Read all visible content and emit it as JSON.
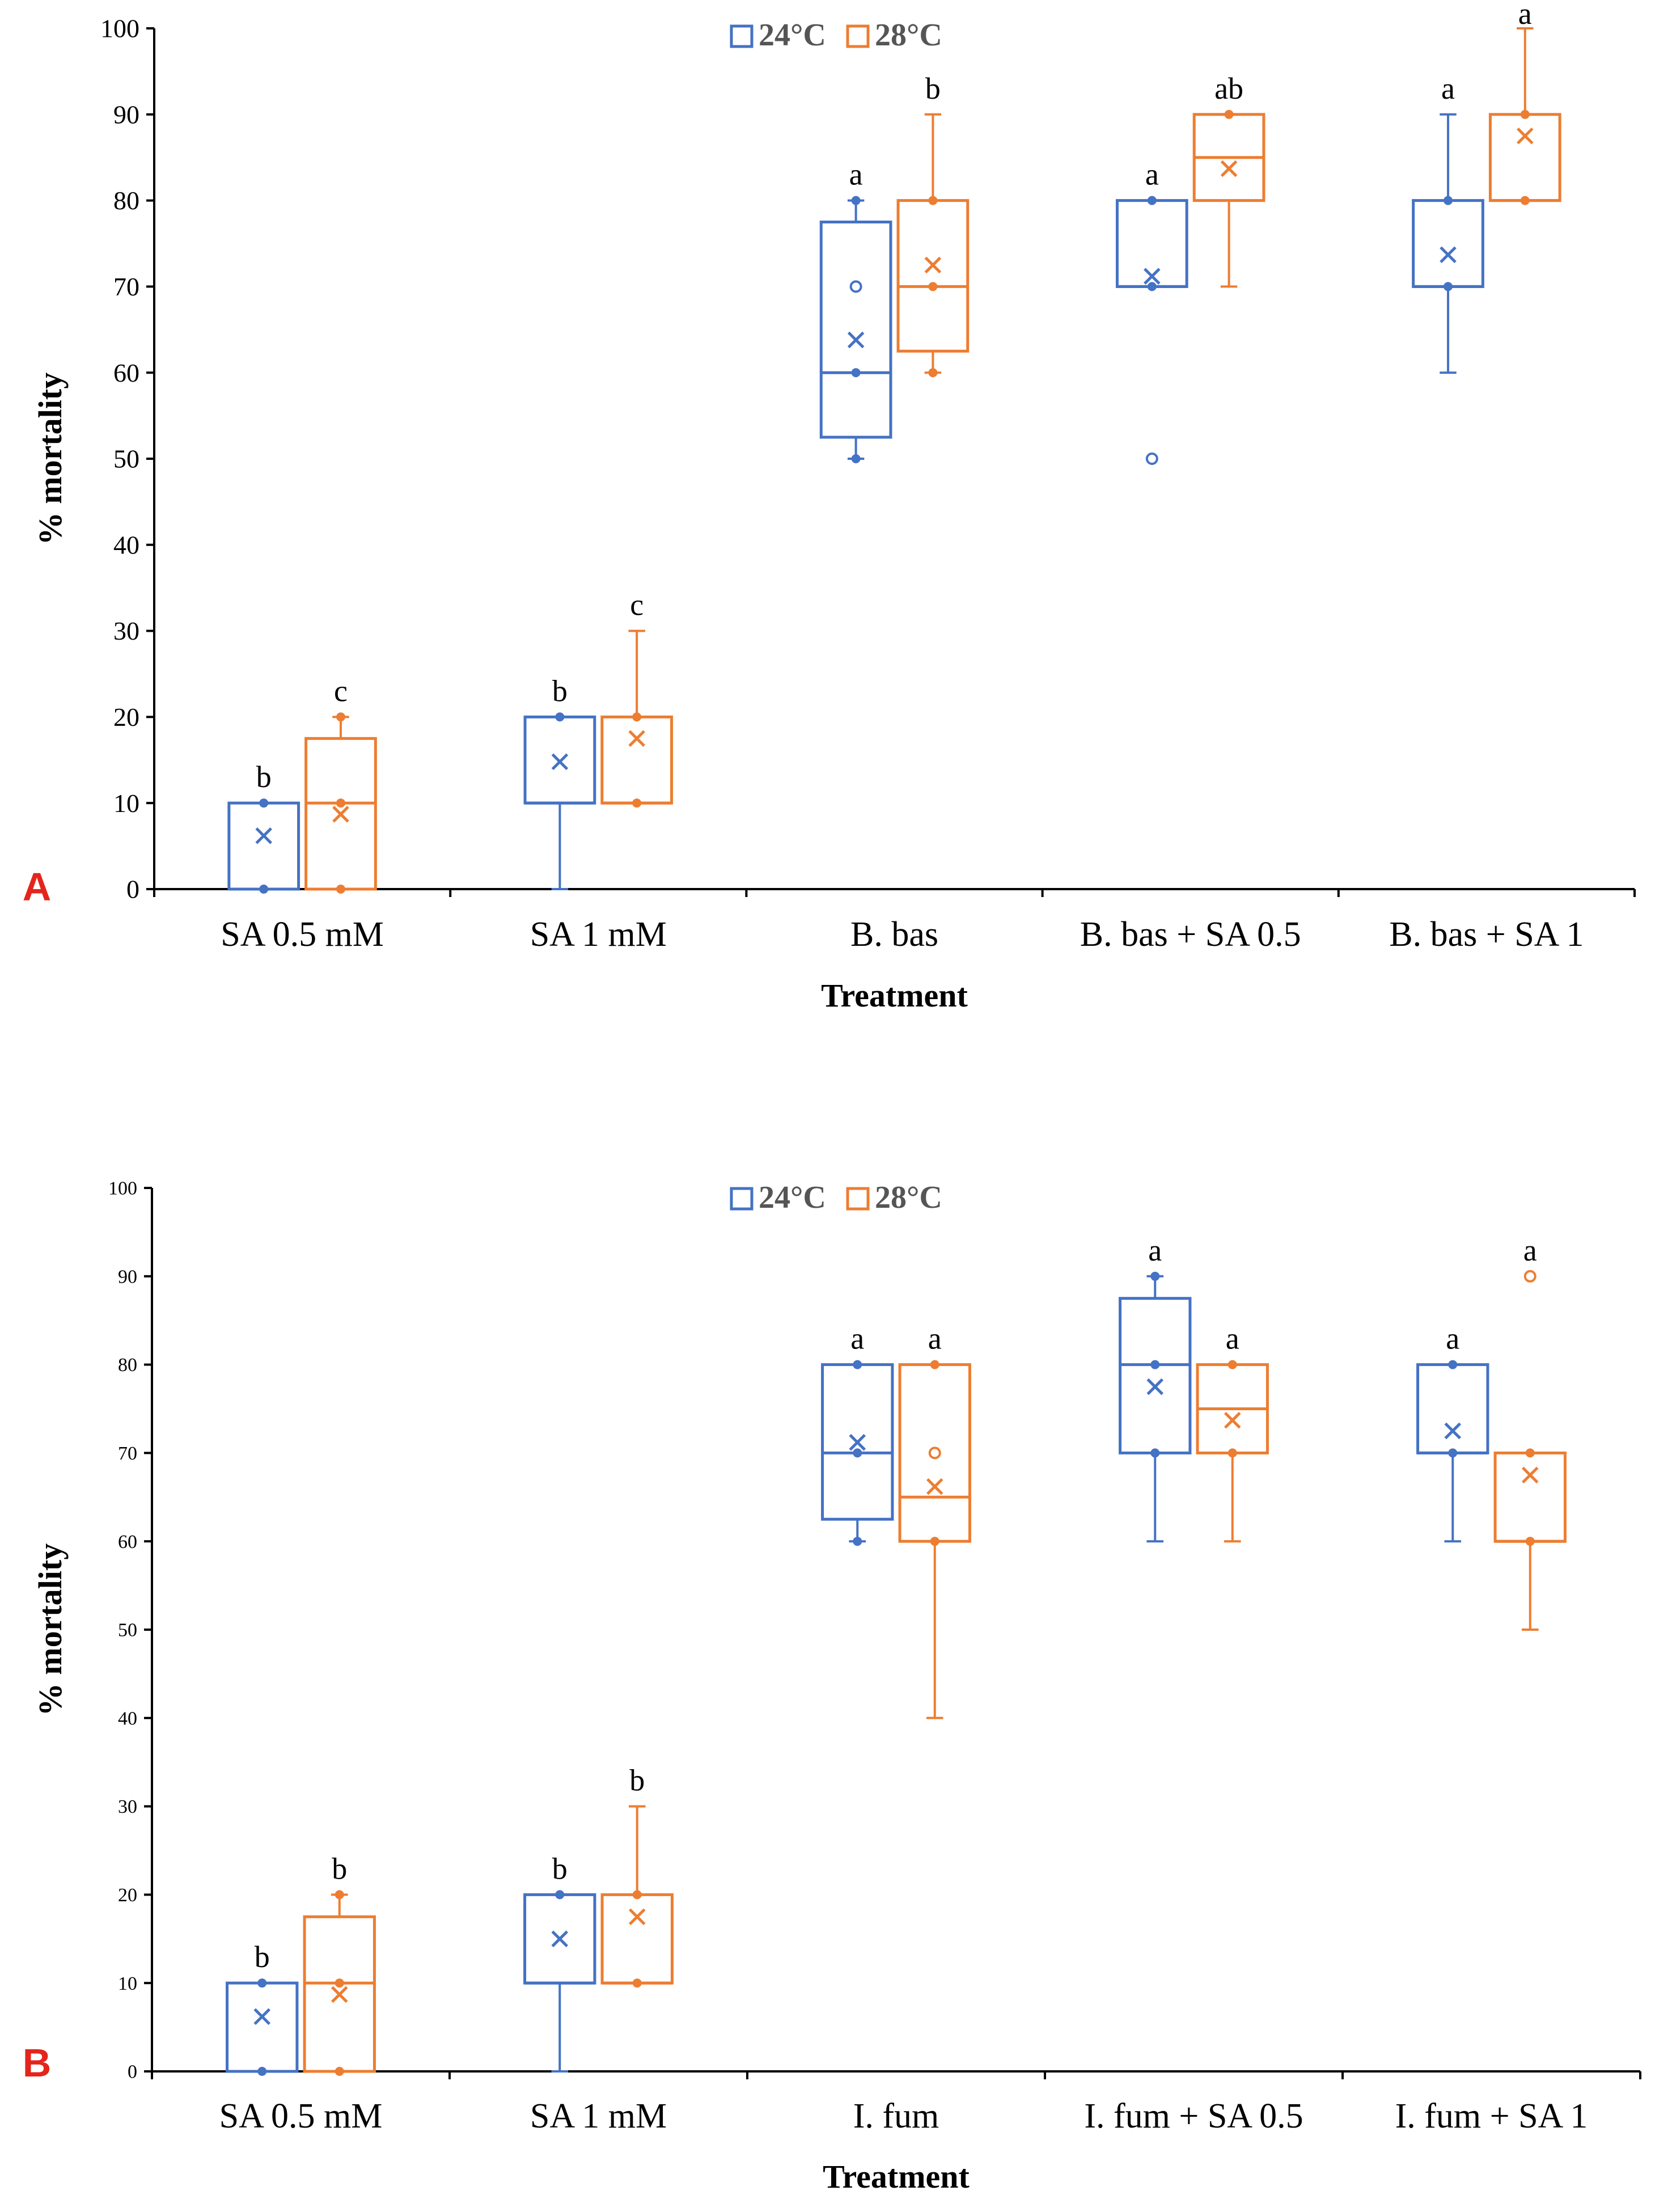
{
  "colors": {
    "c24": "#4472C4",
    "c28": "#ED7D31",
    "axis": "#000000",
    "panel_letter": "#E3251C"
  },
  "chart_data": [
    {
      "type": "box",
      "panel": "A",
      "title": "",
      "xlabel": "Treatment",
      "ylabel": "% mortality",
      "ylim": [
        0,
        100
      ],
      "yticks": [
        "0",
        "10",
        "20",
        "30",
        "40",
        "50",
        "60",
        "70",
        "80",
        "90",
        "100"
      ],
      "grid": false,
      "legend_position": "top-center",
      "legend": [
        {
          "name": "24°C",
          "color": "#4472C4"
        },
        {
          "name": "28°C",
          "color": "#ED7D31"
        }
      ],
      "categories": [
        "SA 0.5 mM",
        "SA 1 mM",
        "B. bas",
        "B. bas + SA 0.5",
        "B. bas + SA 1"
      ],
      "series": [
        {
          "name": "24°C",
          "boxes": [
            {
              "min": 0,
              "q1": 0,
              "median": 0,
              "q3": 10,
              "max": 10,
              "mean": 6.2,
              "points": [
                0,
                10
              ],
              "outliers": [],
              "letter": "b"
            },
            {
              "min": 0,
              "q1": 10,
              "median": 10,
              "q3": 20,
              "max": 20,
              "mean": 14.8,
              "points": [
                20
              ],
              "outliers": [],
              "letter": "b"
            },
            {
              "min": 50,
              "q1": 52.5,
              "median": 60,
              "q3": 77.5,
              "max": 80,
              "mean": 63.8,
              "points": [
                50,
                60,
                80
              ],
              "outliers": [
                70
              ],
              "letter": "a"
            },
            {
              "min": 70,
              "q1": 70,
              "median": 70,
              "q3": 80,
              "max": 80,
              "mean": 71.2,
              "points": [
                70,
                80
              ],
              "outliers": [
                50
              ],
              "letter": "a"
            },
            {
              "min": 60,
              "q1": 70,
              "median": 70,
              "q3": 80,
              "max": 90,
              "mean": 73.7,
              "points": [
                70,
                80
              ],
              "outliers": [],
              "letter": "a"
            }
          ]
        },
        {
          "name": "28°C",
          "boxes": [
            {
              "min": 0,
              "q1": 0,
              "median": 10,
              "q3": 17.5,
              "max": 20,
              "mean": 8.7,
              "points": [
                0,
                10,
                20
              ],
              "outliers": [],
              "letter": "c"
            },
            {
              "min": 10,
              "q1": 10,
              "median": 10,
              "q3": 20,
              "max": 30,
              "mean": 17.5,
              "points": [
                10,
                20
              ],
              "outliers": [],
              "letter": "c"
            },
            {
              "min": 60,
              "q1": 62.5,
              "median": 70,
              "q3": 80,
              "max": 90,
              "mean": 72.5,
              "points": [
                60,
                70,
                80
              ],
              "outliers": [],
              "letter": "b"
            },
            {
              "min": 70,
              "q1": 80,
              "median": 85,
              "q3": 90,
              "max": 90,
              "mean": 83.7,
              "points": [
                90
              ],
              "outliers": [],
              "letter": "ab"
            },
            {
              "min": 80,
              "q1": 80,
              "median": 80,
              "q3": 90,
              "max": 100,
              "mean": 87.5,
              "points": [
                80,
                90
              ],
              "outliers": [],
              "letter": "a"
            }
          ]
        }
      ]
    },
    {
      "type": "box",
      "panel": "B",
      "title": "",
      "xlabel": "Treatment",
      "ylabel": "% mortality",
      "ylim": [
        0,
        100
      ],
      "yticks": [
        "0",
        "10",
        "20",
        "30",
        "40",
        "50",
        "60",
        "70",
        "80",
        "90",
        "100"
      ],
      "grid": false,
      "legend_position": "top-center",
      "legend": [
        {
          "name": "24°C",
          "color": "#4472C4"
        },
        {
          "name": "28°C",
          "color": "#ED7D31"
        }
      ],
      "categories": [
        "SA 0.5 mM",
        "SA 1 mM",
        "I. fum",
        "I. fum + SA 0.5",
        "I. fum + SA 1"
      ],
      "series": [
        {
          "name": "24°C",
          "boxes": [
            {
              "min": 0,
              "q1": 0,
              "median": 0,
              "q3": 10,
              "max": 10,
              "mean": 6.2,
              "points": [
                0,
                10
              ],
              "outliers": [],
              "letter": "b"
            },
            {
              "min": 0,
              "q1": 10,
              "median": 10,
              "q3": 20,
              "max": 20,
              "mean": 15,
              "points": [
                20
              ],
              "outliers": [],
              "letter": "b"
            },
            {
              "min": 60,
              "q1": 62.5,
              "median": 70,
              "q3": 80,
              "max": 80,
              "mean": 71.2,
              "points": [
                60,
                70,
                80
              ],
              "outliers": [],
              "letter": "a"
            },
            {
              "min": 60,
              "q1": 70,
              "median": 80,
              "q3": 87.5,
              "max": 90,
              "mean": 77.5,
              "points": [
                70,
                80,
                90
              ],
              "outliers": [],
              "letter": "a"
            },
            {
              "min": 60,
              "q1": 70,
              "median": 70,
              "q3": 80,
              "max": 80,
              "mean": 72.5,
              "points": [
                70,
                80
              ],
              "outliers": [],
              "letter": "a"
            }
          ]
        },
        {
          "name": "28°C",
          "boxes": [
            {
              "min": 0,
              "q1": 0,
              "median": 10,
              "q3": 17.5,
              "max": 20,
              "mean": 8.7,
              "points": [
                0,
                10,
                20
              ],
              "outliers": [],
              "letter": "b"
            },
            {
              "min": 10,
              "q1": 10,
              "median": 10,
              "q3": 20,
              "max": 30,
              "mean": 17.5,
              "points": [
                10,
                20
              ],
              "outliers": [],
              "letter": "b"
            },
            {
              "min": 40,
              "q1": 60,
              "median": 65,
              "q3": 80,
              "max": 80,
              "mean": 66.2,
              "points": [
                60,
                80
              ],
              "outliers": [
                70
              ],
              "letter": "a"
            },
            {
              "min": 60,
              "q1": 70,
              "median": 75,
              "q3": 80,
              "max": 80,
              "mean": 73.7,
              "points": [
                70,
                80
              ],
              "outliers": [],
              "letter": "a"
            },
            {
              "min": 50,
              "q1": 60,
              "median": 60,
              "q3": 70,
              "max": 70,
              "mean": 67.5,
              "points": [
                60,
                70
              ],
              "outliers": [
                90
              ],
              "letter": "a"
            }
          ]
        }
      ]
    }
  ]
}
